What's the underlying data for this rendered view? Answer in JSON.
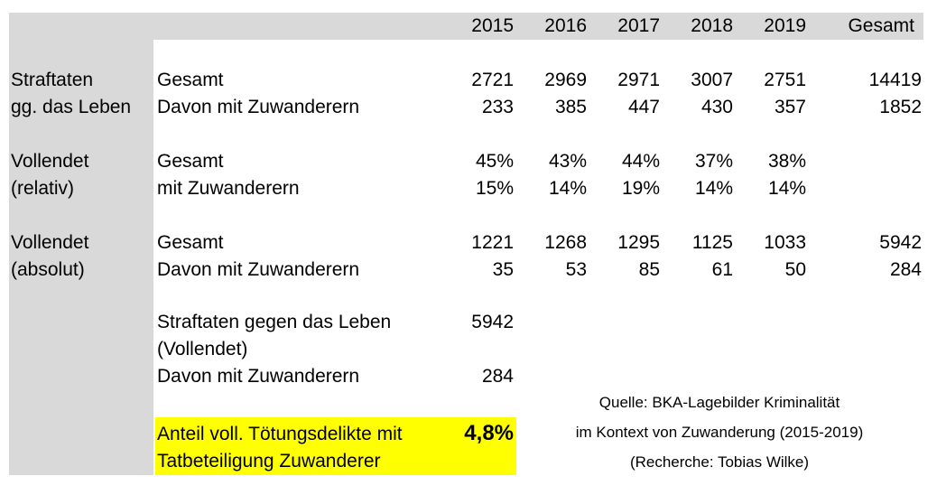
{
  "colors": {
    "header_bg": "#d9d9d9",
    "highlight_bg": "#ffff00",
    "text": "#000000"
  },
  "header": {
    "years": [
      "2015",
      "2016",
      "2017",
      "2018",
      "2019"
    ],
    "total_label": "Gesamt"
  },
  "section1": {
    "label_line1": "Straftaten",
    "label_line2": "gg. das Leben",
    "rows": [
      {
        "label": "Gesamt",
        "values": [
          "2721",
          "2969",
          "2971",
          "3007",
          "2751"
        ],
        "total": "14419"
      },
      {
        "label": "Davon mit Zuwanderern",
        "values": [
          "233",
          "385",
          "447",
          "430",
          "357"
        ],
        "total": "1852"
      }
    ]
  },
  "section2": {
    "label_line1": "Vollendet",
    "label_line2": "(relativ)",
    "rows": [
      {
        "label": "Gesamt",
        "values": [
          "45%",
          "43%",
          "44%",
          "37%",
          "38%"
        ]
      },
      {
        "label": "mit Zuwanderern",
        "values": [
          "15%",
          "14%",
          "19%",
          "14%",
          "14%"
        ]
      }
    ]
  },
  "section3": {
    "label_line1": "Vollendet",
    "label_line2": "(absolut)",
    "rows": [
      {
        "label": "Gesamt",
        "values": [
          "1221",
          "1268",
          "1295",
          "1125",
          "1033"
        ],
        "total": "5942"
      },
      {
        "label": "Davon mit Zuwanderern",
        "values": [
          "35",
          "53",
          "85",
          "61",
          "50"
        ],
        "total": "284"
      }
    ]
  },
  "summary": {
    "row1_label_line1": "Straftaten gegen das Leben",
    "row1_label_line2": "(Vollendet)",
    "row1_value": "5942",
    "row2_label": "Davon mit Zuwanderern",
    "row2_value": "284",
    "highlight_line1": "Anteil voll. Tötungsdelikte mit",
    "highlight_line2": "Tatbeteiligung Zuwanderer",
    "highlight_value": "4,8%"
  },
  "source": {
    "line1": "Quelle: BKA-Lagebilder Kriminalität",
    "line2": "im Kontext von Zuwanderung (2015-2019)",
    "line3": "(Recherche: Tobias Wilke)"
  }
}
